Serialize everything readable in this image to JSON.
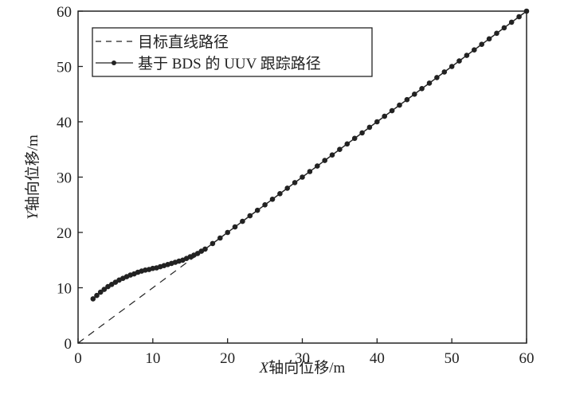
{
  "chart_data": {
    "type": "line",
    "title": "",
    "xlabel": "X轴向位移/m",
    "ylabel": "Y轴向位移/m",
    "xlabel_italic_prefix": "X",
    "xlabel_rest": "轴向位移/m",
    "ylabel_italic_prefix": "Y",
    "ylabel_rest": "轴向位移/m",
    "xlim": [
      0,
      60
    ],
    "ylim": [
      0,
      60
    ],
    "xticks": [
      0,
      10,
      20,
      30,
      40,
      50,
      60
    ],
    "yticks": [
      0,
      10,
      20,
      30,
      40,
      50,
      60
    ],
    "grid": false,
    "legend_position": "upper left",
    "series": [
      {
        "name": "目标直线路径",
        "style": "dashed",
        "color": "#222222",
        "x": [
          0,
          60
        ],
        "y": [
          0,
          60
        ]
      },
      {
        "name": "基于 BDS 的 UUV 跟踪路径",
        "style": "solid-marker",
        "color": "#222222",
        "x": [
          2,
          2.5,
          3,
          3.5,
          4,
          4.5,
          5,
          5.5,
          6,
          6.5,
          7,
          7.5,
          8,
          8.5,
          9,
          9.5,
          10,
          10.5,
          11,
          11.5,
          12,
          12.5,
          13,
          13.5,
          14,
          14.5,
          15,
          15.5,
          16,
          16.5,
          17,
          18,
          19,
          20,
          21,
          22,
          23,
          24,
          25,
          26,
          27,
          28,
          29,
          30,
          31,
          32,
          33,
          34,
          35,
          36,
          37,
          38,
          39,
          40,
          41,
          42,
          43,
          44,
          45,
          46,
          47,
          48,
          49,
          50,
          51,
          52,
          53,
          54,
          55,
          56,
          57,
          58,
          59,
          60
        ],
        "y": [
          8.0,
          8.6,
          9.2,
          9.7,
          10.2,
          10.6,
          11.0,
          11.4,
          11.7,
          12.0,
          12.3,
          12.5,
          12.8,
          13.0,
          13.2,
          13.3,
          13.5,
          13.6,
          13.8,
          14.0,
          14.2,
          14.4,
          14.6,
          14.8,
          15.0,
          15.3,
          15.6,
          15.9,
          16.2,
          16.6,
          17.0,
          18.0,
          19.0,
          20.0,
          21.0,
          22.0,
          23.0,
          24.0,
          25.0,
          26.0,
          27.0,
          28.0,
          29.0,
          30.0,
          31.0,
          32.0,
          33.0,
          34.0,
          35.0,
          36.0,
          37.0,
          38.0,
          39.0,
          40.0,
          41.0,
          42.0,
          43.0,
          44.0,
          45.0,
          46.0,
          47.0,
          48.0,
          49.0,
          50.0,
          51.0,
          52.0,
          53.0,
          54.0,
          55.0,
          56.0,
          57.0,
          58.0,
          59.0,
          60.0
        ]
      }
    ]
  },
  "legend": {
    "items": [
      {
        "label": "目标直线路径"
      },
      {
        "label": "基于 BDS 的 UUV 跟踪路径"
      }
    ]
  }
}
